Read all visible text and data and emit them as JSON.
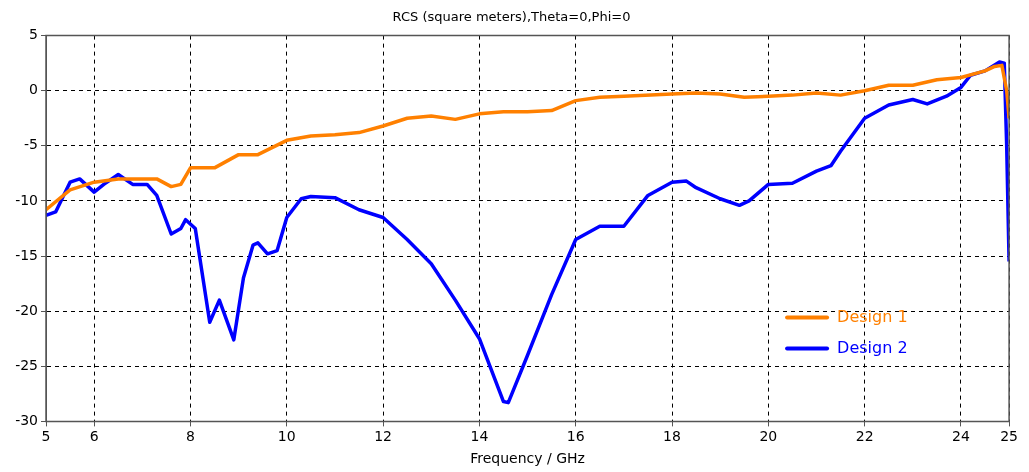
{
  "chart_data": {
    "type": "line",
    "title": "RCS (square meters),Theta=0,Phi=0",
    "xlabel": "Frequency / GHz",
    "xlim": [
      5,
      25
    ],
    "xticks": [
      5,
      6,
      8,
      10,
      12,
      14,
      16,
      18,
      20,
      22,
      24,
      25
    ],
    "ylim": [
      -30,
      5
    ],
    "yticks": [
      -30,
      -25,
      -20,
      -15,
      -10,
      -5,
      0,
      5
    ],
    "grid": true,
    "legend": "bottom right",
    "line_style": "solid",
    "marker": "none",
    "series": [
      {
        "name": "Design 1",
        "color": "#ff8000",
        "x": [
          5,
          5.5,
          6,
          6.5,
          7,
          7.3,
          7.6,
          7.8,
          8,
          8.5,
          9,
          9.4,
          10,
          10.5,
          11,
          11.5,
          12,
          12.5,
          13,
          13.5,
          14,
          14.5,
          15,
          15.5,
          16,
          16.5,
          17,
          18,
          18.5,
          19,
          19.5,
          20,
          20.5,
          21,
          21.5,
          22,
          22.5,
          23,
          23.5,
          24,
          24.5,
          24.7,
          24.85,
          24.95,
          25
        ],
        "values": [
          -10.8,
          -9,
          -8.3,
          -8,
          -8,
          -8,
          -8.7,
          -8.5,
          -7,
          -7,
          -5.8,
          -5.8,
          -4.5,
          -4.1,
          -4,
          -3.8,
          -3.2,
          -2.5,
          -2.3,
          -2.6,
          -2.1,
          -1.9,
          -1.9,
          -1.8,
          -0.9,
          -0.6,
          -0.5,
          -0.3,
          -0.2,
          -0.3,
          -0.6,
          -0.5,
          -0.4,
          -0.2,
          -0.4,
          0,
          0.5,
          0.5,
          1,
          1.2,
          1.8,
          2.2,
          2.3,
          0,
          -2.5
        ]
      },
      {
        "name": "Design 2",
        "color": "#0000ff",
        "x": [
          5,
          5.2,
          5.5,
          5.7,
          6,
          6.2,
          6.5,
          6.8,
          7.1,
          7.3,
          7.6,
          7.8,
          7.9,
          8.1,
          8.4,
          8.6,
          8.9,
          9.1,
          9.3,
          9.4,
          9.6,
          9.8,
          10,
          10.3,
          10.5,
          11,
          11.5,
          12,
          12.5,
          13,
          13.5,
          14,
          14.5,
          14.6,
          15,
          15.5,
          16,
          16.5,
          17,
          17.5,
          18,
          18.3,
          18.5,
          19,
          19.4,
          19.6,
          20,
          20.5,
          21,
          21.3,
          21.5,
          22,
          22.5,
          23,
          23.3,
          23.7,
          24,
          24.2,
          24.5,
          24.8,
          24.9,
          24.95,
          25
        ],
        "values": [
          -11.3,
          -11,
          -8.3,
          -8,
          -9.2,
          -8.5,
          -7.6,
          -8.5,
          -8.5,
          -9.5,
          -13,
          -12.5,
          -11.7,
          -12.5,
          -21,
          -19,
          -22.6,
          -17,
          -14,
          -13.8,
          -14.8,
          -14.5,
          -11.5,
          -9.8,
          -9.6,
          -9.7,
          -10.8,
          -11.5,
          -13.5,
          -15.7,
          -19,
          -22.5,
          -28.2,
          -28.3,
          -24,
          -18.5,
          -13.5,
          -12.3,
          -12.3,
          -9.5,
          -8.3,
          -8.2,
          -8.8,
          -9.8,
          -10.4,
          -10,
          -8.5,
          -8.4,
          -7.3,
          -6.8,
          -5.5,
          -2.5,
          -1.3,
          -0.8,
          -1.2,
          -0.5,
          0.3,
          1.4,
          1.8,
          2.6,
          2.5,
          -5,
          -15.5
        ]
      }
    ]
  }
}
